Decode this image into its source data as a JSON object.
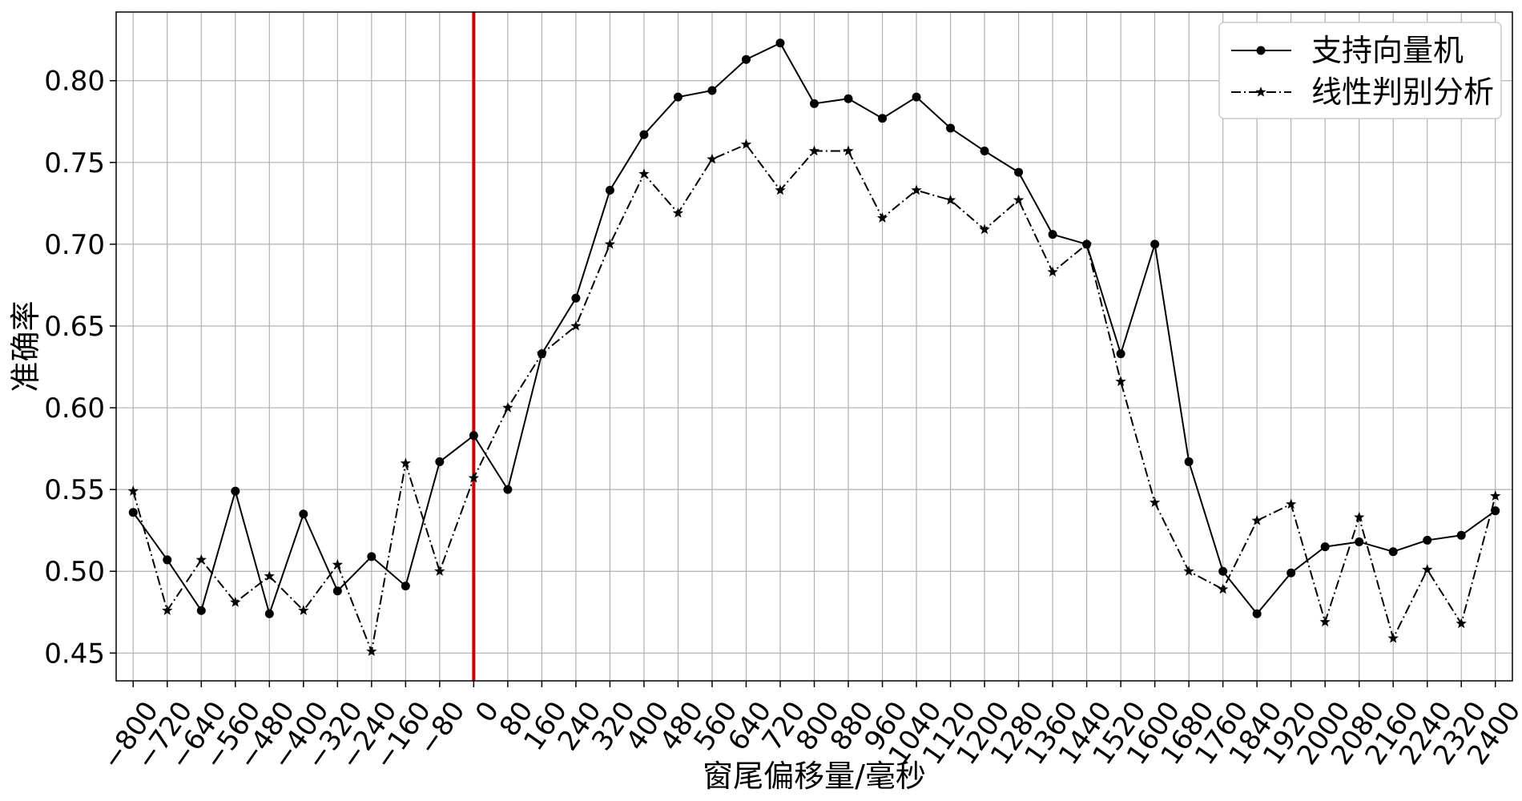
{
  "chart_data": {
    "type": "line",
    "title": "",
    "xlabel": "窗尾偏移量/毫秒",
    "ylabel": "准确率",
    "x": [
      -800,
      -720,
      -640,
      -560,
      -480,
      -400,
      -320,
      -240,
      -160,
      -80,
      0,
      80,
      160,
      240,
      320,
      400,
      480,
      560,
      640,
      720,
      800,
      880,
      960,
      1040,
      1120,
      1200,
      1280,
      1360,
      1440,
      1520,
      1600,
      1680,
      1760,
      1840,
      1920,
      2000,
      2080,
      2160,
      2240,
      2320,
      2400
    ],
    "x_tick_labels": [
      "−800",
      "−720",
      "−640",
      "−560",
      "−480",
      "−400",
      "−320",
      "−240",
      "−160",
      "−80",
      "0",
      "80",
      "160",
      "240",
      "320",
      "400",
      "480",
      "560",
      "640",
      "720",
      "800",
      "880",
      "960",
      "1040",
      "1120",
      "1200",
      "1280",
      "1360",
      "1440",
      "1520",
      "1600",
      "1680",
      "1760",
      "1840",
      "1920",
      "2000",
      "2080",
      "2160",
      "2240",
      "2320",
      "2400"
    ],
    "xlim": [
      -840,
      2440
    ],
    "ylim": [
      0.433,
      0.842
    ],
    "y_ticks": [
      0.45,
      0.5,
      0.55,
      0.6,
      0.65,
      0.7,
      0.75,
      0.8
    ],
    "y_tick_labels": [
      "0.45",
      "0.50",
      "0.55",
      "0.60",
      "0.65",
      "0.70",
      "0.75",
      "0.80"
    ],
    "grid": true,
    "legend_position": "top-right",
    "reference_line": {
      "x": 0,
      "color": "#cc0000"
    },
    "series": [
      {
        "name": "支持向量机",
        "marker": "circle",
        "line_style": "solid",
        "color": "#000000",
        "values": [
          0.536,
          0.507,
          0.476,
          0.549,
          0.474,
          0.535,
          0.488,
          0.509,
          0.491,
          0.567,
          0.583,
          0.55,
          0.633,
          0.667,
          0.733,
          0.767,
          0.79,
          0.794,
          0.813,
          0.823,
          0.786,
          0.789,
          0.777,
          0.79,
          0.771,
          0.757,
          0.744,
          0.706,
          0.7,
          0.633,
          0.7,
          0.567,
          0.5,
          0.474,
          0.499,
          0.515,
          0.518,
          0.512,
          0.519,
          0.522,
          0.537
        ]
      },
      {
        "name": "线性判别分析",
        "marker": "star",
        "line_style": "dashdot",
        "color": "#000000",
        "values": [
          0.549,
          0.476,
          0.507,
          0.481,
          0.497,
          0.476,
          0.504,
          0.451,
          0.566,
          0.5,
          0.557,
          0.6,
          0.633,
          0.65,
          0.7,
          0.743,
          0.719,
          0.752,
          0.761,
          0.733,
          0.757,
          0.757,
          0.716,
          0.733,
          0.727,
          0.709,
          0.727,
          0.683,
          0.7,
          0.616,
          0.542,
          0.5,
          0.489,
          0.531,
          0.541,
          0.469,
          0.533,
          0.459,
          0.501,
          0.468,
          0.546
        ]
      }
    ]
  }
}
